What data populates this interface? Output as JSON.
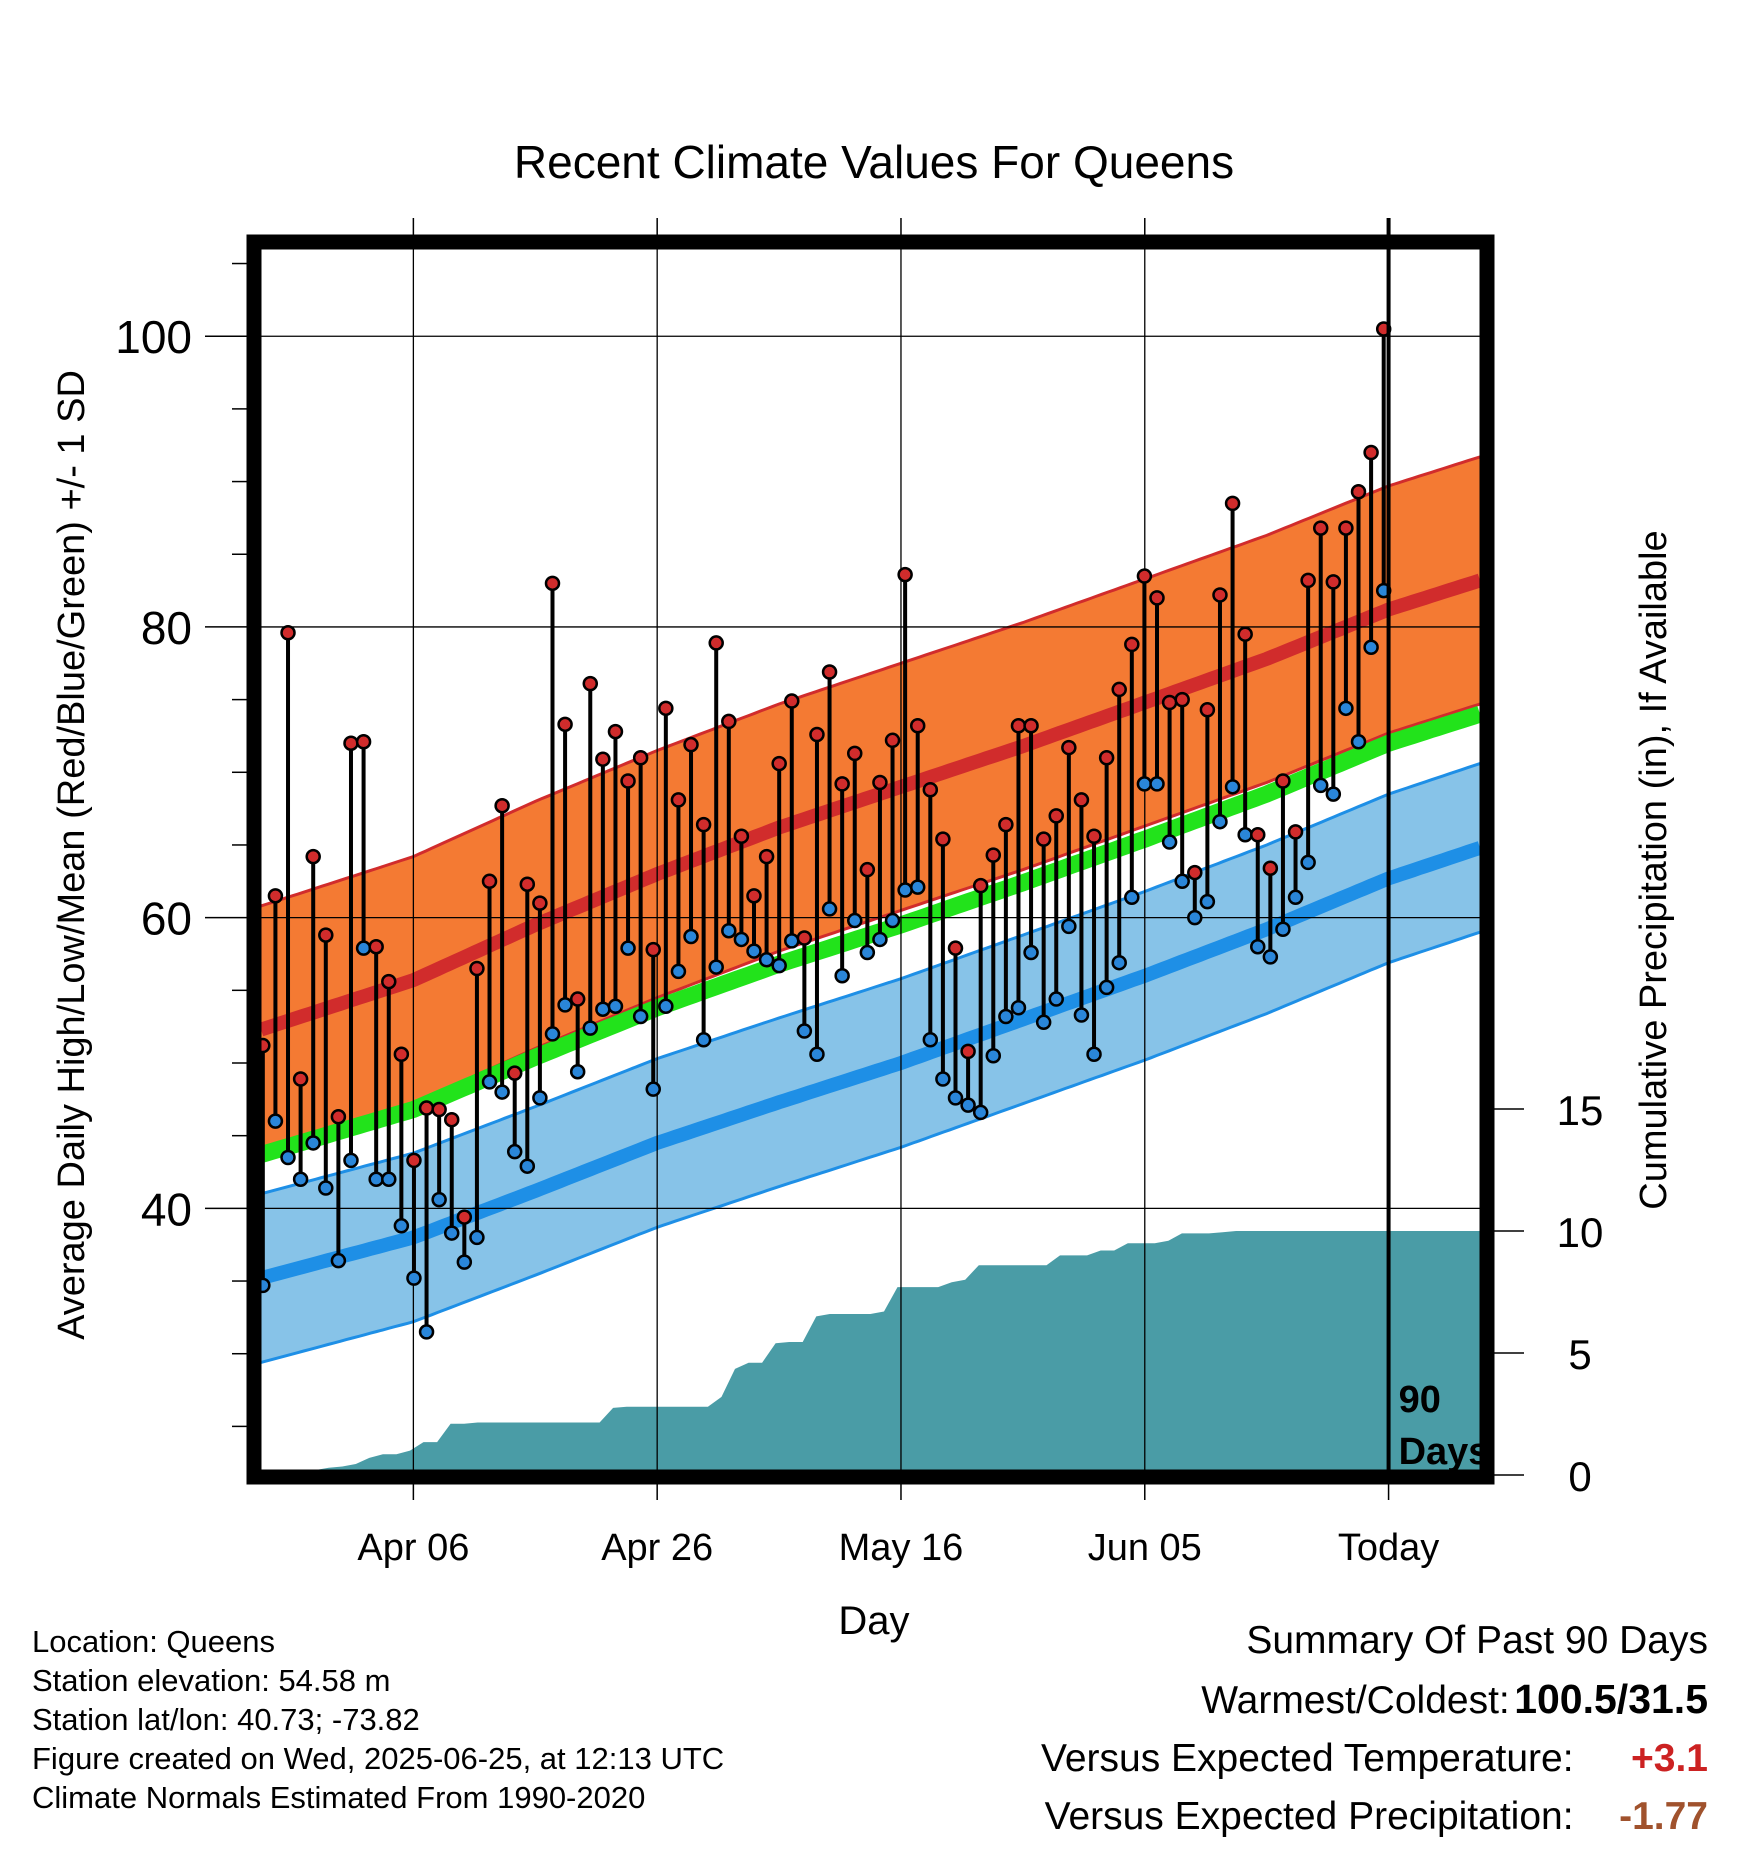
{
  "chart_data": {
    "type": "line",
    "title": "Recent Climate Values For Queens",
    "xlabel": "Day",
    "ylabel": "Average Daily High/Low/Mean (Red/Blue/Green) +/- 1 SD",
    "ylabel_right": "Cumulative Precipitation (in), If Available",
    "ylim": [
      22,
      106
    ],
    "xlim": [
      -10.5,
      9.5
    ],
    "x_ticks": [
      {
        "x": -8,
        "label": "Apr 06"
      },
      {
        "x": -4,
        "label": "Apr 26"
      },
      {
        "x": 0,
        "label": "May 16"
      },
      {
        "x": 4,
        "label": "Jun 05"
      },
      {
        "x": 8,
        "label": "Today"
      }
    ],
    "y_ticks": [
      40,
      60,
      80,
      100
    ],
    "y2_ticks": [
      0,
      5,
      10,
      15
    ],
    "today_x": 8,
    "today_label": [
      "90",
      "Days"
    ],
    "grid": true,
    "normals_x": [
      -10.5,
      -8,
      -6,
      -4,
      -2,
      0,
      2,
      4,
      6,
      8,
      9.5
    ],
    "normal_high": [
      52.3,
      55.7,
      59.5,
      63.0,
      66.2,
      69.0,
      71.8,
      74.8,
      77.8,
      81.2,
      83.2
    ],
    "normal_high_sd": 8.5,
    "normal_low": [
      35.2,
      38.0,
      41.2,
      44.5,
      47.3,
      50.0,
      53.0,
      56.0,
      59.2,
      62.7,
      64.8
    ],
    "normal_low_sd": 5.8,
    "normal_mean": [
      43.7,
      46.8,
      50.4,
      53.8,
      56.8,
      59.5,
      62.4,
      65.4,
      68.5,
      72.0,
      74.0
    ],
    "series": [
      {
        "name": "High",
        "color": "#cc2222",
        "values": [
          51.2,
          61.5,
          79.6,
          48.9,
          64.2,
          58.8,
          46.3,
          72.0,
          72.1,
          58.0,
          55.6,
          50.6,
          43.3,
          46.9,
          46.8,
          46.1,
          39.4,
          56.5,
          62.5,
          67.7,
          49.3,
          62.3,
          61.0,
          83.0,
          73.3,
          54.4,
          76.1,
          70.9,
          72.8,
          69.4,
          71.0,
          57.8,
          74.4,
          68.1,
          71.9,
          66.4,
          78.9,
          73.5,
          65.6,
          61.5,
          64.2,
          70.6,
          74.9,
          58.6,
          72.6,
          76.9,
          69.2,
          71.3,
          63.3,
          69.3,
          72.2,
          83.6,
          73.2,
          68.8,
          65.4,
          57.9,
          50.8,
          62.2,
          64.3,
          66.4,
          73.2,
          73.2,
          65.4,
          67.0,
          71.7,
          68.1,
          65.6,
          71.0,
          75.7,
          78.8,
          83.5,
          82.0,
          74.8,
          75.0,
          63.1,
          74.3,
          82.2,
          88.5,
          79.5,
          65.7,
          63.4,
          69.4,
          65.9,
          83.2,
          86.8,
          83.1,
          86.8,
          89.3,
          92.0,
          100.5
        ]
      },
      {
        "name": "Low",
        "color": "#1e8fe6",
        "values": [
          34.7,
          46.0,
          43.5,
          42.0,
          44.5,
          41.4,
          36.4,
          43.3,
          57.9,
          42.0,
          42.0,
          38.8,
          35.2,
          31.5,
          40.6,
          38.3,
          36.3,
          38.0,
          48.7,
          48.0,
          43.9,
          42.9,
          47.6,
          52.0,
          54.0,
          49.4,
          52.4,
          53.7,
          53.9,
          57.9,
          53.2,
          48.2,
          53.9,
          56.3,
          58.7,
          51.6,
          56.6,
          59.1,
          58.5,
          57.7,
          57.1,
          56.7,
          58.4,
          52.2,
          50.6,
          60.6,
          56.0,
          59.8,
          57.6,
          58.5,
          59.8,
          61.9,
          62.1,
          51.6,
          48.9,
          47.6,
          47.1,
          46.6,
          50.5,
          53.2,
          53.8,
          57.6,
          52.8,
          54.4,
          59.4,
          53.3,
          50.6,
          55.2,
          56.9,
          61.4,
          69.2,
          69.2,
          65.2,
          62.5,
          60.0,
          61.1,
          66.6,
          69.0,
          65.7,
          58.0,
          57.3,
          59.2,
          61.4,
          63.8,
          69.1,
          68.5,
          74.4,
          72.1,
          78.6,
          82.5
        ]
      }
    ],
    "precip_start_x": -10.5,
    "precip_step": 0.2222,
    "precip_cumulative": [
      0,
      0,
      0,
      0,
      0.2,
      0.3,
      0.35,
      0.45,
      0.7,
      0.85,
      0.85,
      1.0,
      1.35,
      1.35,
      2.1,
      2.1,
      2.15,
      2.15,
      2.15,
      2.15,
      2.15,
      2.15,
      2.15,
      2.15,
      2.15,
      2.15,
      2.75,
      2.8,
      2.8,
      2.8,
      2.8,
      2.8,
      2.8,
      2.8,
      3.2,
      4.35,
      4.6,
      4.6,
      5.4,
      5.45,
      5.45,
      6.5,
      6.6,
      6.6,
      6.6,
      6.6,
      6.7,
      7.7,
      7.7,
      7.7,
      7.7,
      7.9,
      8.0,
      8.6,
      8.6,
      8.6,
      8.6,
      8.6,
      8.6,
      9.0,
      9.0,
      9.0,
      9.2,
      9.2,
      9.5,
      9.5,
      9.5,
      9.6,
      9.9,
      9.9,
      9.9,
      9.95,
      10.0,
      10.0,
      10.0,
      10.0,
      10.0,
      10.0,
      10.0,
      10.0,
      10.0,
      10.0,
      10.0,
      10.0,
      10.0,
      10.0,
      10.0,
      10.0,
      10.0,
      10.0
    ],
    "colors": {
      "high_band": "#f47a33",
      "high_line": "#d12c2c",
      "low_band": "#87c3e8",
      "low_line": "#1e8fe6",
      "mean_line": "#22e31b",
      "precip": "#4a9ca6",
      "high_dot": "#d12c2c",
      "low_dot": "#2a86d9"
    }
  },
  "info": {
    "location": "Location: Queens",
    "elevation": "Station elevation: 54.58 m",
    "latlon": "Station lat/lon: 40.73; -73.82",
    "created": "Figure created on Wed, 2025-06-25, at 12:13 UTC",
    "normals": "Climate Normals Estimated From 1990-2020"
  },
  "summary": {
    "title": "Summary Of Past 90 Days",
    "warmest_coldest_label": "Warmest/Coldest:",
    "warmest_coldest_value": "100.5/31.5",
    "temp_label": "Versus Expected Temperature:",
    "temp_value": "+3.1",
    "temp_color": "#cc2222",
    "precip_label": "Versus Expected Precipitation:",
    "precip_value": "-1.77",
    "precip_color": "#a0522d"
  }
}
